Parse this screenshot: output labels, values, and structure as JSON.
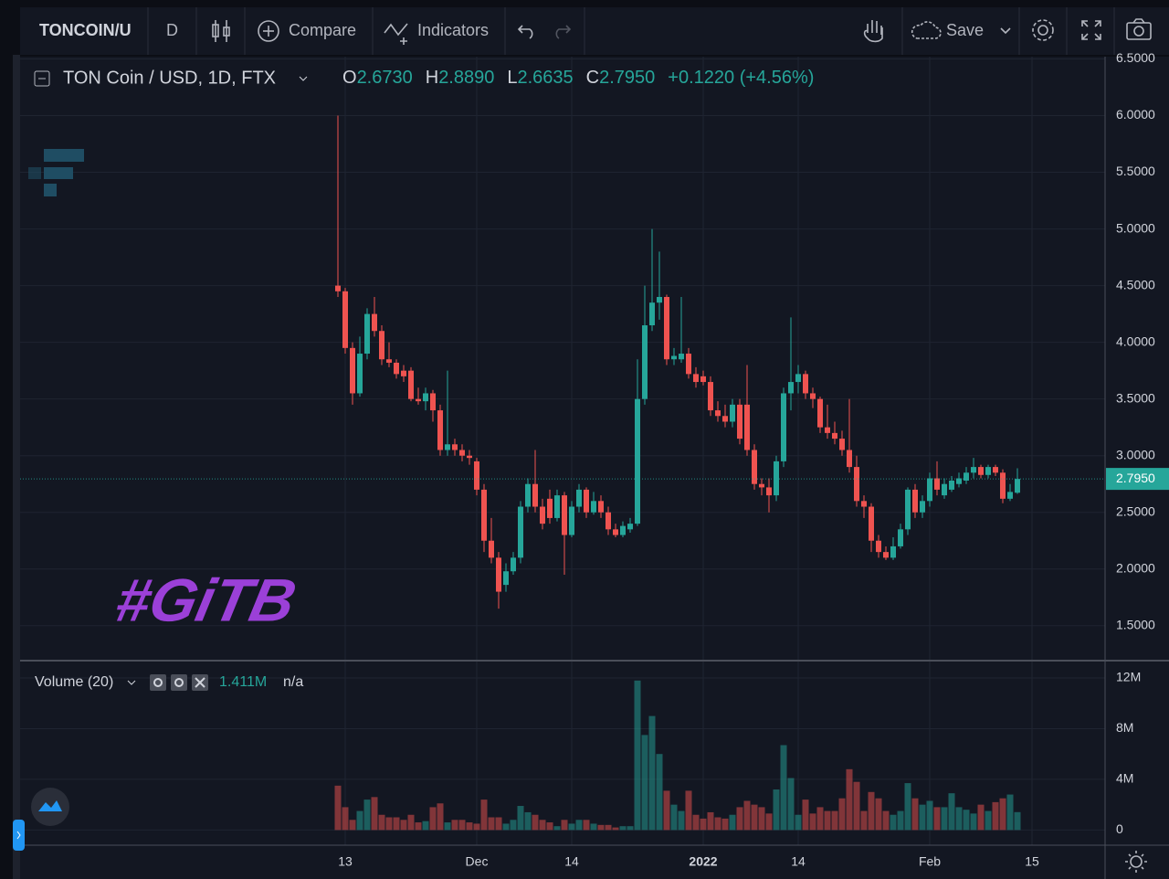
{
  "toolbar": {
    "symbol": "TONCOIN/U",
    "interval": "D",
    "compare": "Compare",
    "indicators": "Indicators",
    "save": "Save"
  },
  "legend": {
    "symbol": "TON Coin / USD, 1D, FTX",
    "items": [
      {
        "key": "O",
        "value": "2.6730"
      },
      {
        "key": "H",
        "value": "2.8890"
      },
      {
        "key": "L",
        "value": "2.6635"
      },
      {
        "key": "C",
        "value": "2.7950"
      }
    ],
    "change": "+0.1220 (+4.56%)"
  },
  "watermark": "#GiTB",
  "chart_data": [
    {
      "type": "candlestick",
      "open": [
        4.5,
        4.45,
        3.95,
        3.55,
        3.9,
        4.25,
        4.1,
        3.85,
        3.82,
        3.75,
        3.75,
        3.5,
        3.48,
        3.55,
        3.4,
        3.05,
        3.1,
        3.05,
        3.0,
        2.95,
        2.7,
        2.25,
        2.1,
        1.86,
        1.98,
        2.1,
        2.55,
        2.75,
        2.55,
        2.62,
        2.45,
        2.65,
        2.3,
        2.55,
        2.7,
        2.5,
        2.6,
        2.5,
        2.35,
        2.3,
        2.35,
        2.4,
        3.5,
        4.15,
        4.35,
        4.4,
        3.85,
        3.85,
        3.9,
        3.72,
        3.7,
        3.65,
        3.4,
        3.35,
        3.3,
        3.45,
        3.45,
        3.05,
        2.75,
        2.72,
        2.65,
        2.95,
        3.55,
        3.65,
        3.72,
        3.55,
        3.5,
        3.25,
        3.2,
        3.15,
        3.05,
        2.9,
        2.6,
        2.55,
        2.25,
        2.15,
        2.1,
        2.2,
        2.35,
        2.7,
        2.5,
        2.6,
        2.8,
        2.65,
        2.7,
        2.75,
        2.78,
        2.85,
        2.9,
        2.83,
        2.9,
        2.85,
        2.62,
        2.673
      ],
      "high": [
        6.0,
        4.48,
        4.0,
        4.05,
        4.3,
        4.4,
        4.15,
        4.0,
        3.85,
        3.8,
        3.78,
        3.6,
        3.6,
        3.58,
        3.45,
        3.75,
        3.15,
        3.1,
        3.05,
        2.98,
        2.75,
        2.45,
        2.15,
        2.05,
        2.15,
        2.6,
        2.8,
        3.05,
        2.62,
        2.7,
        2.7,
        2.68,
        2.6,
        2.75,
        2.72,
        2.68,
        2.65,
        2.55,
        2.4,
        2.42,
        2.45,
        3.85,
        4.5,
        5.0,
        4.8,
        4.42,
        3.95,
        4.4,
        3.95,
        3.78,
        3.75,
        3.7,
        3.48,
        3.45,
        3.5,
        3.5,
        3.8,
        3.1,
        2.8,
        2.8,
        3.0,
        3.6,
        4.22,
        3.8,
        3.75,
        3.6,
        3.52,
        3.45,
        3.3,
        3.22,
        3.5,
        3.0,
        2.65,
        2.58,
        2.3,
        2.2,
        2.28,
        2.4,
        2.72,
        2.75,
        2.65,
        2.85,
        2.95,
        2.8,
        2.82,
        2.85,
        2.9,
        2.98,
        2.92,
        2.92,
        2.92,
        2.88,
        2.75,
        2.889
      ],
      "low": [
        4.4,
        3.9,
        3.45,
        3.52,
        3.85,
        4.05,
        3.8,
        3.78,
        3.68,
        3.65,
        3.48,
        3.45,
        3.4,
        3.3,
        3.0,
        3.0,
        3.0,
        2.95,
        2.92,
        2.65,
        2.15,
        2.05,
        1.65,
        1.8,
        1.95,
        2.05,
        2.5,
        2.5,
        2.35,
        2.4,
        2.42,
        1.95,
        2.28,
        2.5,
        2.45,
        2.48,
        2.45,
        2.3,
        2.28,
        2.28,
        2.32,
        2.38,
        3.45,
        4.1,
        4.2,
        3.8,
        3.8,
        3.82,
        3.68,
        3.6,
        3.62,
        3.35,
        3.3,
        3.25,
        3.25,
        3.1,
        3.0,
        2.7,
        2.65,
        2.5,
        2.6,
        2.9,
        3.4,
        3.55,
        3.5,
        3.42,
        3.2,
        3.15,
        3.1,
        3.0,
        2.85,
        2.55,
        2.45,
        2.15,
        2.1,
        2.08,
        2.08,
        2.18,
        2.3,
        2.45,
        2.45,
        2.55,
        2.65,
        2.62,
        2.68,
        2.72,
        2.75,
        2.8,
        2.8,
        2.8,
        2.82,
        2.58,
        2.6,
        2.6635
      ],
      "close": [
        4.45,
        3.95,
        3.55,
        3.9,
        4.25,
        4.1,
        3.85,
        3.82,
        3.72,
        3.7,
        3.5,
        3.48,
        3.55,
        3.4,
        3.05,
        3.1,
        3.05,
        3.0,
        2.98,
        2.7,
        2.25,
        2.1,
        1.8,
        1.98,
        2.1,
        2.55,
        2.75,
        2.55,
        2.4,
        2.45,
        2.65,
        2.3,
        2.55,
        2.7,
        2.5,
        2.6,
        2.5,
        2.35,
        2.3,
        2.38,
        2.4,
        3.5,
        4.15,
        4.35,
        4.4,
        3.85,
        3.88,
        3.9,
        3.72,
        3.65,
        3.65,
        3.4,
        3.35,
        3.3,
        3.45,
        3.15,
        3.05,
        2.75,
        2.72,
        2.65,
        2.95,
        3.55,
        3.65,
        3.72,
        3.55,
        3.5,
        3.25,
        3.2,
        3.15,
        3.05,
        2.9,
        2.6,
        2.55,
        2.25,
        2.15,
        2.1,
        2.2,
        2.35,
        2.7,
        2.5,
        2.6,
        2.8,
        2.7,
        2.75,
        2.78,
        2.8,
        2.85,
        2.9,
        2.83,
        2.9,
        2.85,
        2.62,
        2.68,
        2.795
      ],
      "up_color": "#26a69a",
      "down_color": "#ef5350",
      "last_label": "2.7950",
      "ylim": [
        1.2,
        6.52
      ],
      "yticks": [
        {
          "value": 1.5,
          "label": "1.5000"
        },
        {
          "value": 2,
          "label": "2.0000"
        },
        {
          "value": 2.5,
          "label": "2.5000"
        },
        {
          "value": 3,
          "label": "3.0000"
        },
        {
          "value": 3.5,
          "label": "3.5000"
        },
        {
          "value": 4,
          "label": "4.0000"
        },
        {
          "value": 4.5,
          "label": "4.5000"
        },
        {
          "value": 5,
          "label": "5.0000"
        },
        {
          "value": 5.5,
          "label": "5.5000"
        },
        {
          "value": 6,
          "label": "6.0000"
        },
        {
          "value": 6.5,
          "label": "6.5000"
        }
      ],
      "grid": true
    },
    {
      "type": "bar",
      "title": "Volume (20)",
      "last_label": "1.411M",
      "ma_label": "n/a",
      "values": [
        3.5,
        1.8,
        0.8,
        1.5,
        2.4,
        2.6,
        1.2,
        1.0,
        1.0,
        0.8,
        1.2,
        0.6,
        0.7,
        1.8,
        2.1,
        0.6,
        0.8,
        0.8,
        0.6,
        0.5,
        2.4,
        1.0,
        1.0,
        0.5,
        0.8,
        1.9,
        1.4,
        1.2,
        0.8,
        0.6,
        0.3,
        0.8,
        0.5,
        0.8,
        0.8,
        0.5,
        0.4,
        0.4,
        0.2,
        0.3,
        0.3,
        11.8,
        7.5,
        9.0,
        6.0,
        3.1,
        2.0,
        1.5,
        3.1,
        1.2,
        0.9,
        1.4,
        1.0,
        0.9,
        1.2,
        1.8,
        2.3,
        2.0,
        1.8,
        1.3,
        3.2,
        6.7,
        4.1,
        1.2,
        2.4,
        1.3,
        1.8,
        1.5,
        1.5,
        2.5,
        4.8,
        3.8,
        1.5,
        3.0,
        2.5,
        1.5,
        1.2,
        1.5,
        3.7,
        2.5,
        2.0,
        2.3,
        1.8,
        1.8,
        2.9,
        1.8,
        1.6,
        1.3,
        2.0,
        1.5,
        2.2,
        2.5,
        2.8,
        1.411
      ],
      "up_color": "rgba(38,166,154,0.5)",
      "down_color": "rgba(239,83,80,0.5)",
      "ylim": [
        -1.2,
        13.3
      ],
      "yticks": [
        0,
        {
          "value": 4,
          "label": "4M"
        },
        {
          "value": 8,
          "label": "8M"
        },
        {
          "value": 12,
          "label": "12M"
        }
      ],
      "xlim": [
        -43.5,
        105
      ],
      "xticks": [
        {
          "value": 1,
          "label": "13"
        },
        {
          "value": 19,
          "label": "Dec"
        },
        {
          "value": 32,
          "label": "14"
        },
        {
          "value": 50,
          "label": "2022"
        },
        {
          "value": 63,
          "label": "14"
        },
        {
          "value": 81,
          "label": "Feb"
        },
        {
          "value": 95,
          "label": "15"
        }
      ],
      "grid": true
    }
  ]
}
